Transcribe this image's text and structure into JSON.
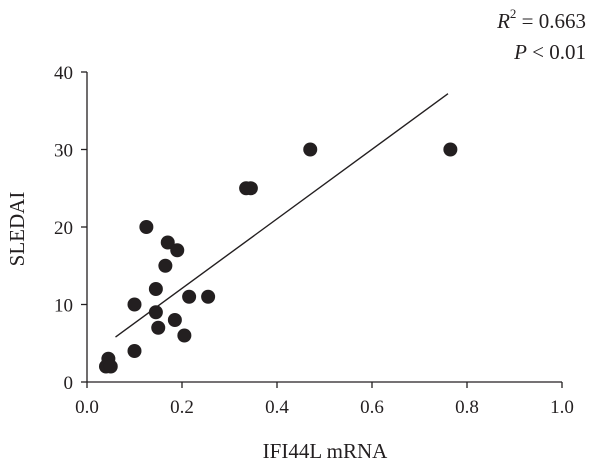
{
  "chart_data": {
    "type": "scatter",
    "xlabel": "IFI44L mRNA",
    "ylabel": "SLEDAI",
    "xlim": [
      0,
      1.0
    ],
    "ylim": [
      0,
      40
    ],
    "x_ticks": [
      "0.0",
      "0.2",
      "0.4",
      "0.6",
      "0.8",
      "1.0"
    ],
    "y_ticks": [
      "0",
      "10",
      "20",
      "30",
      "40"
    ],
    "grid": false,
    "points": [
      {
        "x": 0.04,
        "y": 2
      },
      {
        "x": 0.045,
        "y": 3
      },
      {
        "x": 0.05,
        "y": 2
      },
      {
        "x": 0.1,
        "y": 10
      },
      {
        "x": 0.1,
        "y": 4
      },
      {
        "x": 0.125,
        "y": 20
      },
      {
        "x": 0.145,
        "y": 12
      },
      {
        "x": 0.145,
        "y": 9
      },
      {
        "x": 0.15,
        "y": 7
      },
      {
        "x": 0.165,
        "y": 15
      },
      {
        "x": 0.17,
        "y": 18
      },
      {
        "x": 0.185,
        "y": 8
      },
      {
        "x": 0.19,
        "y": 17
      },
      {
        "x": 0.205,
        "y": 6
      },
      {
        "x": 0.215,
        "y": 11
      },
      {
        "x": 0.255,
        "y": 11
      },
      {
        "x": 0.335,
        "y": 25
      },
      {
        "x": 0.345,
        "y": 25
      },
      {
        "x": 0.47,
        "y": 30
      },
      {
        "x": 0.765,
        "y": 30
      }
    ],
    "regression_line": {
      "x": [
        0.06,
        0.76
      ],
      "y": [
        5.8,
        37.2
      ]
    },
    "annotations": {
      "r2_label": "R",
      "r2_exp": "2",
      "r2_value": " = 0.663",
      "p_label": "P",
      "p_value": " < 0.01"
    },
    "colors": {
      "points": "#231f20",
      "axis": "#231f20",
      "line": "#231f20"
    }
  }
}
